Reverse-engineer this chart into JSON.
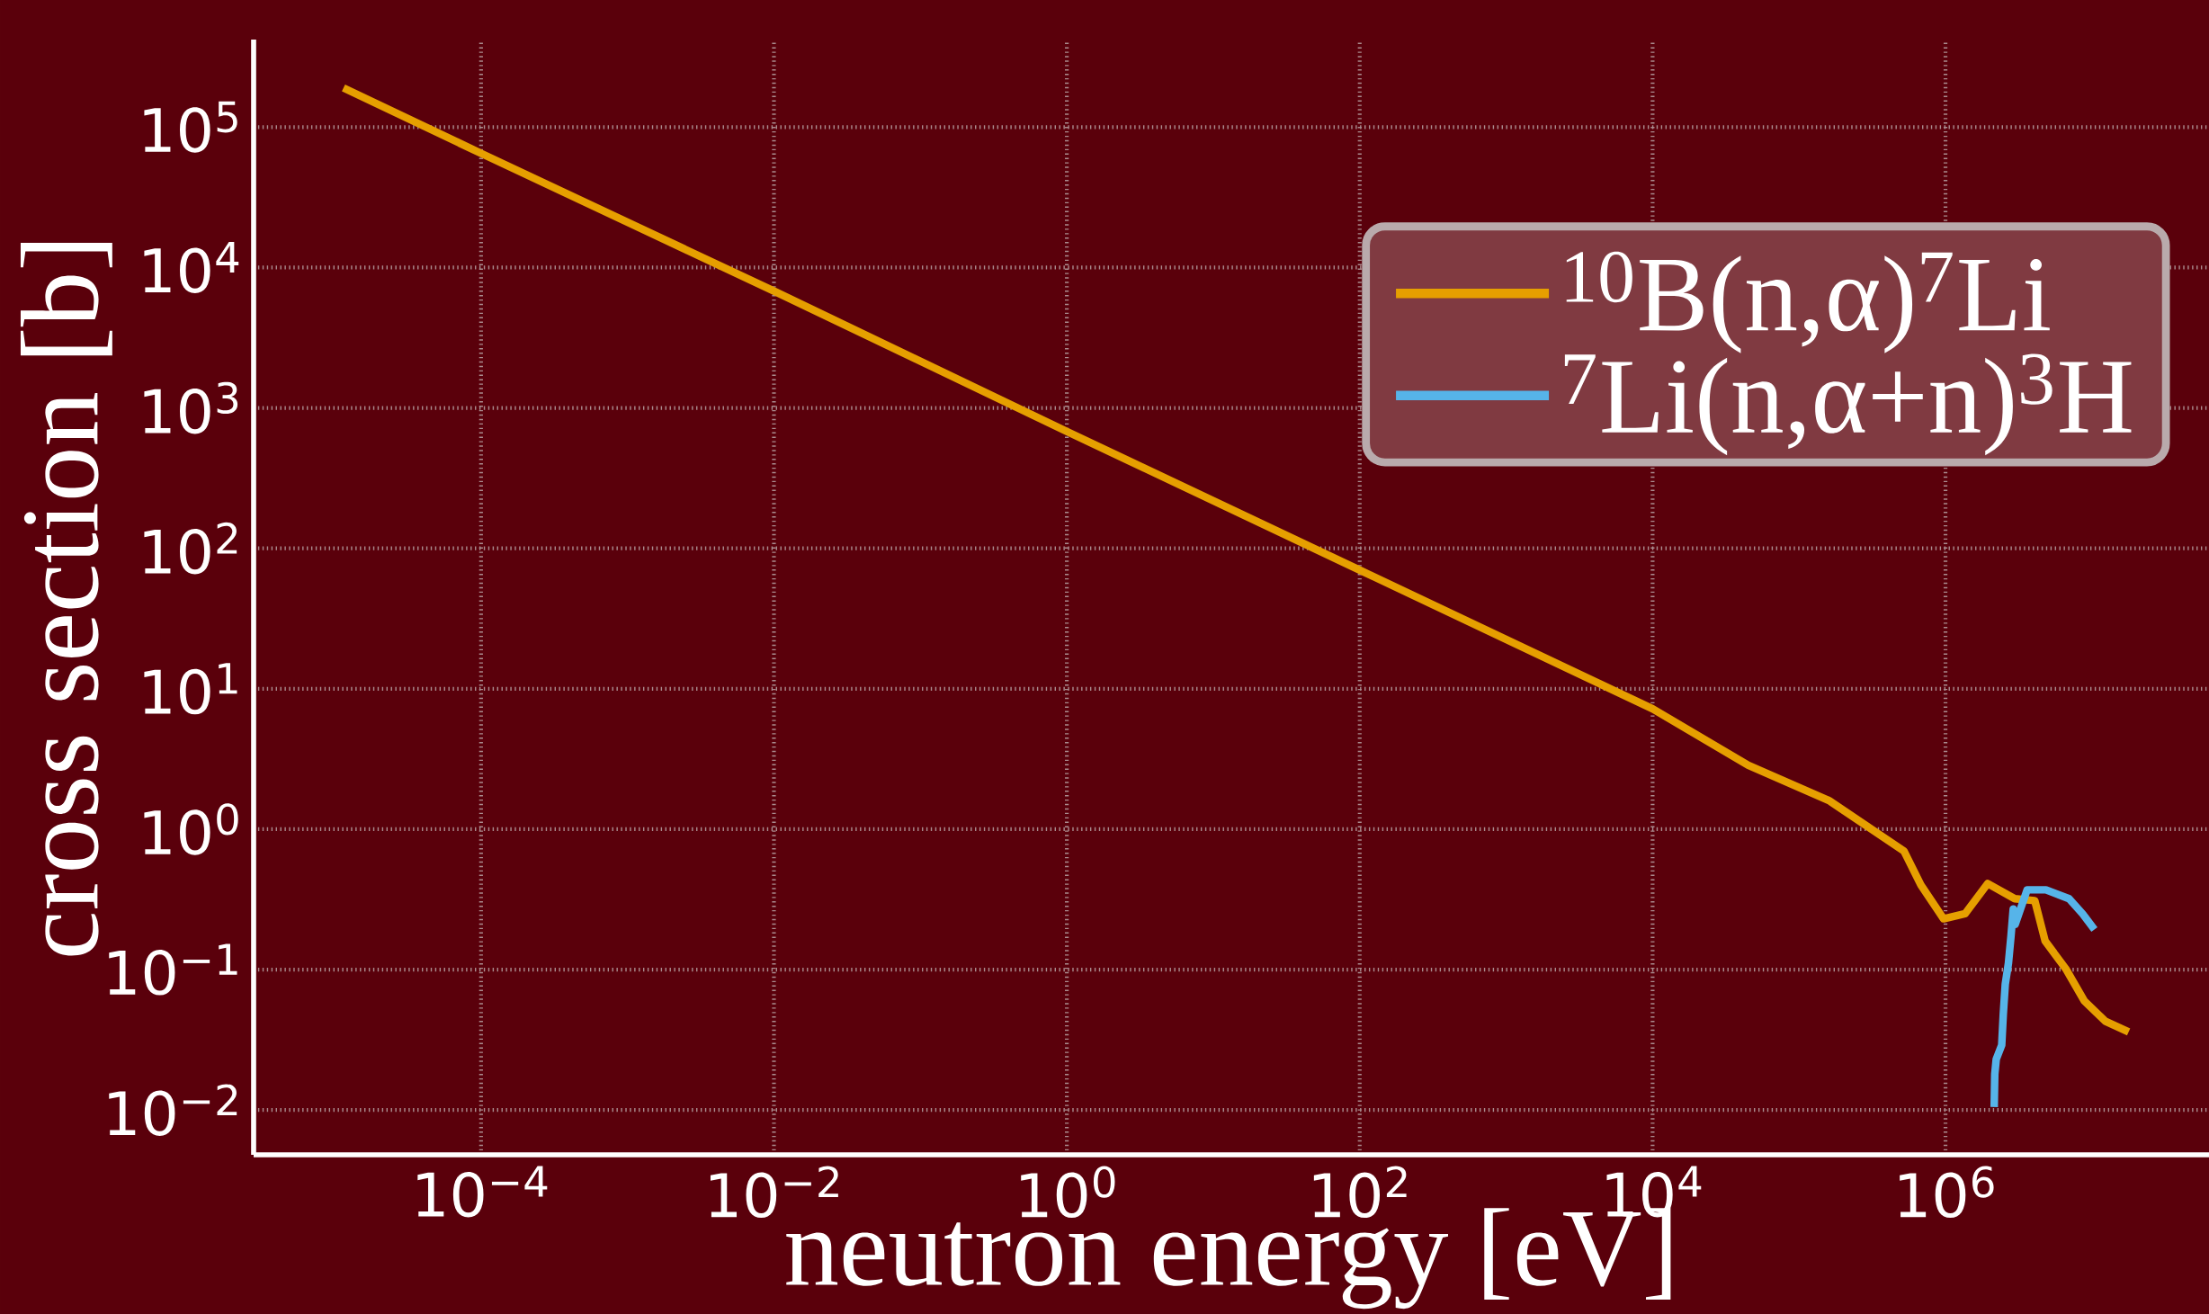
{
  "chart_data": {
    "type": "line",
    "xlabel": "neutron energy [eV]",
    "ylabel": "cross section [b]",
    "log": "xy",
    "grid": true,
    "legend": "top right",
    "xlim": [
      2.8e-06,
      63000000.0
    ],
    "ylim": [
      0.0048,
      420000
    ],
    "xticks": [
      {
        "value": 0.0001,
        "label": "10$^{−4}$"
      },
      {
        "value": 0.01,
        "label": "10$^{−2}$"
      },
      {
        "value": 1,
        "label": "10$^{0}$"
      },
      {
        "value": 100,
        "label": "10$^{2}$"
      },
      {
        "value": 10000,
        "label": "10$^{4}$"
      },
      {
        "value": 1000000,
        "label": "10$^{6}$"
      }
    ],
    "yticks": [
      {
        "value": 0.01,
        "label": "10$^{−2}$"
      },
      {
        "value": 0.1,
        "label": "10$^{−1}$"
      },
      {
        "value": 1,
        "label": "10$^{0}$"
      },
      {
        "value": 10,
        "label": "10$^{1}$"
      },
      {
        "value": 100,
        "label": "10$^{2}$"
      },
      {
        "value": 1000,
        "label": "10$^{3}$"
      },
      {
        "value": 10000,
        "label": "10$^{4}$"
      },
      {
        "value": 100000,
        "label": "10$^{5}$"
      }
    ],
    "series": [
      {
        "name": "$^{10}$B(n,α)$^{7}$Li",
        "color": "#e69f00",
        "x": [
          1.15e-05,
          0.0001,
          0.01,
          1,
          100,
          10000,
          45000,
          160000,
          520000,
          680000,
          970000,
          1360000,
          1940000,
          2970000,
          4070000,
          4790000,
          6680000,
          8850000,
          12300000,
          17800000
        ],
        "values": [
          190000,
          65000,
          6800,
          680,
          70,
          7.2,
          2.85,
          1.6,
          0.7,
          0.4,
          0.23,
          0.25,
          0.41,
          0.32,
          0.31,
          0.16,
          0.1,
          0.06,
          0.043,
          0.036
        ]
      },
      {
        "name": "$^{7}$Li(n,α+n)$^{3}$H",
        "color": "#56b4e9",
        "x": [
          2150000,
          2170000,
          2220000,
          2420000,
          2480000,
          2560000,
          2690000,
          2800000,
          2900000,
          2990000,
          3610000,
          4850000,
          6980000,
          8630000,
          10400000
        ],
        "values": [
          0.0105,
          0.018,
          0.023,
          0.029,
          0.048,
          0.079,
          0.111,
          0.173,
          0.27,
          0.21,
          0.37,
          0.37,
          0.32,
          0.25,
          0.193
        ]
      }
    ]
  }
}
